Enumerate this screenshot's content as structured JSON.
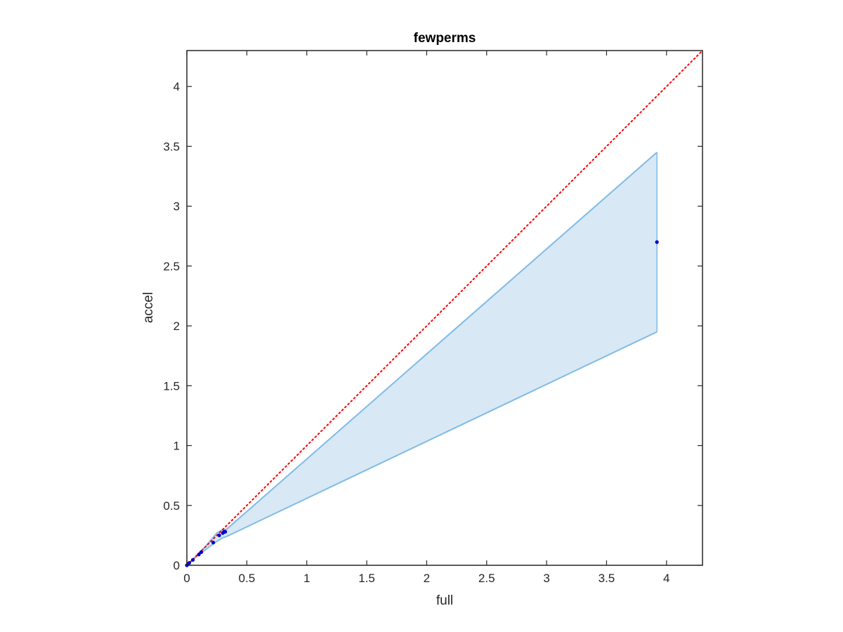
{
  "chart_data": {
    "type": "scatter",
    "title": "fewperms",
    "xlabel": "full",
    "ylabel": "accel",
    "xlim": [
      0,
      4.3
    ],
    "ylim": [
      0,
      4.3
    ],
    "xticks": [
      0,
      0.5,
      1,
      1.5,
      2,
      2.5,
      3,
      3.5,
      4
    ],
    "yticks": [
      0,
      0.5,
      1,
      1.5,
      2,
      2.5,
      3,
      3.5,
      4
    ],
    "xtick_labels": [
      "0",
      "0.5",
      "1",
      "1.5",
      "2",
      "2.5",
      "3",
      "3.5",
      "4"
    ],
    "ytick_labels": [
      "0",
      "0.5",
      "1",
      "1.5",
      "2",
      "2.5",
      "3",
      "3.5",
      "4"
    ],
    "grid": false,
    "legend": "none",
    "reference_line": {
      "kind": "identity y=x",
      "style": "dotted",
      "color": "#ff0000"
    },
    "band": {
      "color": "#7fbbe6",
      "fill": "#d8e8f5",
      "upper": {
        "x": [
          0,
          0.05,
          0.1,
          0.15,
          0.2,
          0.25,
          0.3,
          0.33,
          3.92
        ],
        "y": [
          0,
          0.05,
          0.1,
          0.15,
          0.21,
          0.27,
          0.3,
          0.3,
          3.45
        ]
      },
      "lower": {
        "x": [
          0,
          0.05,
          0.1,
          0.15,
          0.2,
          0.25,
          0.3,
          0.33,
          3.92
        ],
        "y": [
          0,
          0.045,
          0.09,
          0.125,
          0.165,
          0.2,
          0.23,
          0.24,
          1.95
        ]
      }
    },
    "points": {
      "color": "#0000cc",
      "x": [
        0.0,
        0.01,
        0.02,
        0.05,
        0.1,
        0.12,
        0.22,
        0.27,
        0.3,
        0.31,
        0.32,
        3.92
      ],
      "y": [
        0.0,
        0.01,
        0.02,
        0.045,
        0.09,
        0.11,
        0.19,
        0.25,
        0.27,
        0.28,
        0.28,
        2.7
      ]
    }
  }
}
